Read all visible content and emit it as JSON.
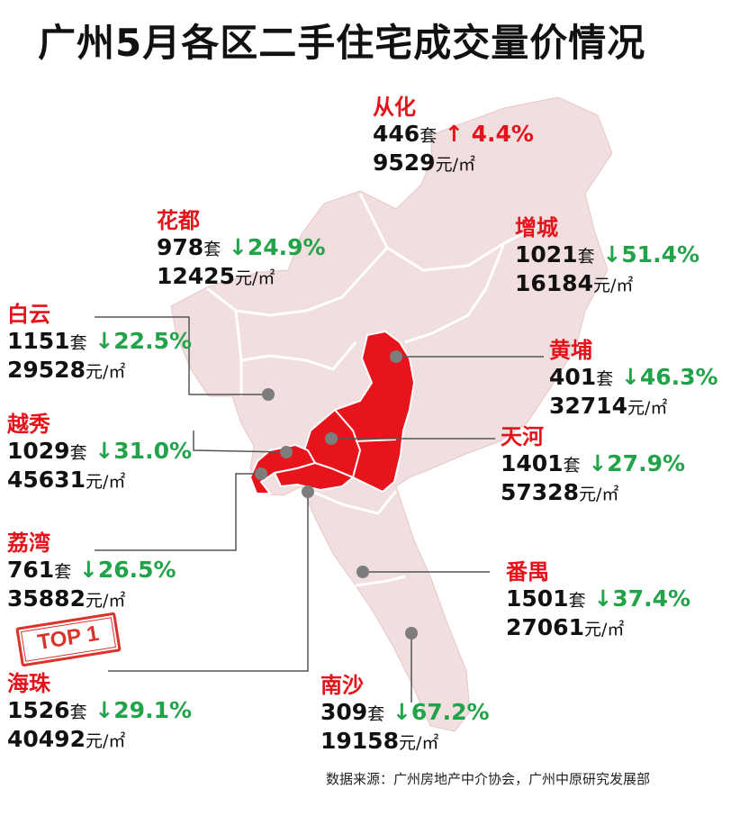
{
  "title": "广州5月各区二手住宅成交量价情况",
  "units": {
    "volume": "套",
    "price": "元/㎡"
  },
  "colors": {
    "highlight": "#e3121b",
    "land": "#f1dede",
    "increase": "#e3121b",
    "decrease": "#22a34a"
  },
  "stamp": {
    "text": "TOP 1",
    "district": "海珠"
  },
  "source": "数据来源：广州房地产中介协会，广州中原研究发展部",
  "districts": [
    {
      "name": "从化",
      "volume": "446",
      "arrow": "↑",
      "change": "4.4%",
      "direction": "up",
      "price": "9529"
    },
    {
      "name": "花都",
      "volume": "978",
      "arrow": "↓",
      "change": "24.9%",
      "direction": "down",
      "price": "12425"
    },
    {
      "name": "增城",
      "volume": "1021",
      "arrow": "↓",
      "change": "51.4%",
      "direction": "down",
      "price": "16184"
    },
    {
      "name": "白云",
      "volume": "1151",
      "arrow": "↓",
      "change": "22.5%",
      "direction": "down",
      "price": "29528"
    },
    {
      "name": "黄埔",
      "volume": "401",
      "arrow": "↓",
      "change": "46.3%",
      "direction": "down",
      "price": "32714"
    },
    {
      "name": "越秀",
      "volume": "1029",
      "arrow": "↓",
      "change": "31.0%",
      "direction": "down",
      "price": "45631"
    },
    {
      "name": "天河",
      "volume": "1401",
      "arrow": "↓",
      "change": "27.9%",
      "direction": "down",
      "price": "57328"
    },
    {
      "name": "荔湾",
      "volume": "761",
      "arrow": "↓",
      "change": "26.5%",
      "direction": "down",
      "price": "35882"
    },
    {
      "name": "番禺",
      "volume": "1501",
      "arrow": "↓",
      "change": "37.4%",
      "direction": "down",
      "price": "27061"
    },
    {
      "name": "海珠",
      "volume": "1526",
      "arrow": "↓",
      "change": "29.1%",
      "direction": "down",
      "price": "40492"
    },
    {
      "name": "南沙",
      "volume": "309",
      "arrow": "↓",
      "change": "67.2%",
      "direction": "down",
      "price": "19158"
    }
  ]
}
